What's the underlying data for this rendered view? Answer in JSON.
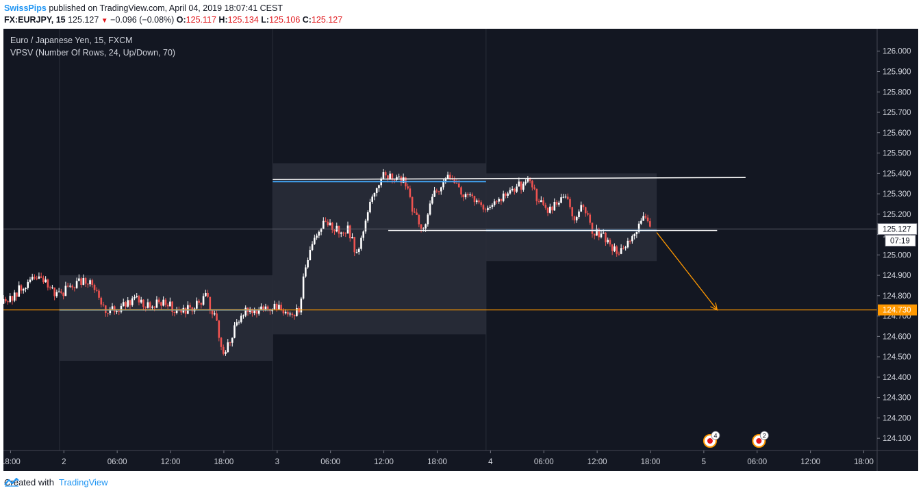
{
  "header": {
    "author": "SwissPips",
    "published_text": "published on TradingView.com, April 04, 2019 18:07:41 CEST",
    "symbol": "FX:EURJPY, 15",
    "last": "125.127",
    "change": "−0.096 (−0.08%)",
    "open_label": "O:",
    "open_value": "125.117",
    "high_label": "H:",
    "high_value": "125.134",
    "low_label": "L:",
    "low_value": "125.106",
    "close_label": "C:",
    "close_value": "125.127"
  },
  "legend": {
    "instrument": "Euro / Japanese Yen, 15, FXCM",
    "indicator": "VPSV (Number Of Rows, 24, Up/Down, 70)"
  },
  "footer": {
    "created_with": "Created with",
    "brand": "TradingView"
  },
  "colors": {
    "background": "#131722",
    "up": "#ffffff",
    "down": "#ef5350",
    "support_line": "#ff9800",
    "trend_line": "#ffffff",
    "value_area": "#42a5f5",
    "box": "#2a2e39"
  },
  "icons": [
    "down-triangle-icon",
    "event-marker-icon",
    "tradingview-logo-icon"
  ],
  "chart_data": {
    "type": "candlestick",
    "timeframe": "15",
    "y_ticks": [
      "126.000",
      "125.900",
      "125.800",
      "125.700",
      "125.600",
      "125.500",
      "125.400",
      "125.300",
      "125.200",
      "125.100",
      "125.000",
      "124.900",
      "124.800",
      "124.700",
      "124.600",
      "124.500",
      "124.400",
      "124.300",
      "124.200",
      "124.100"
    ],
    "ylim": [
      124.04,
      126.11
    ],
    "x_ticks": [
      {
        "t": 0,
        "label": "18:00"
      },
      {
        "t": 6,
        "label": "2"
      },
      {
        "t": 12,
        "label": "06:00"
      },
      {
        "t": 18,
        "label": "12:00"
      },
      {
        "t": 24,
        "label": "18:00"
      },
      {
        "t": 30,
        "label": "3"
      },
      {
        "t": 36,
        "label": "06:00"
      },
      {
        "t": 42,
        "label": "12:00"
      },
      {
        "t": 48,
        "label": "18:00"
      },
      {
        "t": 54,
        "label": "4"
      },
      {
        "t": 60,
        "label": "06:00"
      },
      {
        "t": 66,
        "label": "12:00"
      },
      {
        "t": 72,
        "label": "18:00"
      },
      {
        "t": 78,
        "label": "5"
      },
      {
        "t": 84,
        "label": "06:00"
      },
      {
        "t": 90,
        "label": "12:00"
      },
      {
        "t": 96,
        "label": "18:00"
      }
    ],
    "x_unit": "hours since Apr 1 18:00",
    "xlim": [
      -0.8,
      97.5
    ],
    "day_separators": [
      5.5,
      29.5,
      53.5
    ],
    "price_path": [
      [
        -0.8,
        124.76
      ],
      [
        1,
        124.83
      ],
      [
        2.5,
        124.88
      ],
      [
        4,
        124.86
      ],
      [
        5.5,
        124.8
      ],
      [
        7,
        124.85
      ],
      [
        9,
        124.88
      ],
      [
        10.5,
        124.74
      ],
      [
        12,
        124.73
      ],
      [
        14,
        124.79
      ],
      [
        15.5,
        124.75
      ],
      [
        17,
        124.77
      ],
      [
        19,
        124.72
      ],
      [
        20.5,
        124.74
      ],
      [
        22,
        124.8
      ],
      [
        23,
        124.7
      ],
      [
        24,
        124.5
      ],
      [
        25,
        124.62
      ],
      [
        26.5,
        124.74
      ],
      [
        28,
        124.73
      ],
      [
        29.5,
        124.75
      ],
      [
        31,
        124.71
      ],
      [
        32.5,
        124.72
      ],
      [
        33,
        124.9
      ],
      [
        34,
        125.05
      ],
      [
        35,
        125.15
      ],
      [
        36.5,
        125.13
      ],
      [
        38,
        125.12
      ],
      [
        39,
        125.0
      ],
      [
        40,
        125.18
      ],
      [
        41,
        125.33
      ],
      [
        42,
        125.4
      ],
      [
        43.5,
        125.38
      ],
      [
        44.5,
        125.35
      ],
      [
        45.5,
        125.18
      ],
      [
        46.5,
        125.14
      ],
      [
        47.5,
        125.28
      ],
      [
        49,
        125.39
      ],
      [
        50.5,
        125.31
      ],
      [
        52,
        125.29
      ],
      [
        53.5,
        125.22
      ],
      [
        55,
        125.28
      ],
      [
        57,
        125.33
      ],
      [
        58.5,
        125.37
      ],
      [
        59.5,
        125.25
      ],
      [
        60.5,
        125.22
      ],
      [
        61.5,
        125.25
      ],
      [
        62.5,
        125.28
      ],
      [
        63.5,
        125.18
      ],
      [
        64.5,
        125.25
      ],
      [
        65.5,
        125.12
      ],
      [
        67,
        125.08
      ],
      [
        68.5,
        125.0
      ],
      [
        69.5,
        125.06
      ],
      [
        70.5,
        125.14
      ],
      [
        71.5,
        125.18
      ],
      [
        72,
        125.12
      ]
    ],
    "vpsv_boxes": [
      {
        "t0": 5.5,
        "t1": 29.5,
        "high": 124.9,
        "low": 124.48
      },
      {
        "t0": 29.5,
        "t1": 53.5,
        "high": 125.45,
        "low": 124.61
      },
      {
        "t0": 53.5,
        "t1": 72.7,
        "high": 125.4,
        "low": 124.97
      }
    ],
    "value_area_lines": [
      {
        "t0": 5.5,
        "t1": 29.5,
        "price": 124.73
      },
      {
        "t0": 29.5,
        "t1": 53.5,
        "price": 125.36
      },
      {
        "t0": 53.5,
        "t1": 72.7,
        "price": 125.12
      }
    ],
    "drawings": [
      {
        "kind": "trend_line",
        "t0": 29.5,
        "p0": 125.37,
        "t1": 82.7,
        "p1": 125.38
      },
      {
        "kind": "horizontal_line",
        "t0": 42.5,
        "t1": 79.5,
        "price": 125.12
      },
      {
        "kind": "arrow",
        "t0": 72.7,
        "p0": 125.11,
        "t1": 79.5,
        "p1": 124.73
      },
      {
        "kind": "horizontal_ray",
        "price": 124.73
      }
    ],
    "price_labels": [
      {
        "price": 125.127,
        "text": "125.127",
        "sub": "07:19"
      },
      {
        "price": 124.73,
        "text": "124.730"
      }
    ],
    "event_markers": [
      {
        "t": 78.7,
        "count": "4"
      },
      {
        "t": 84.2,
        "count": "2"
      }
    ]
  }
}
